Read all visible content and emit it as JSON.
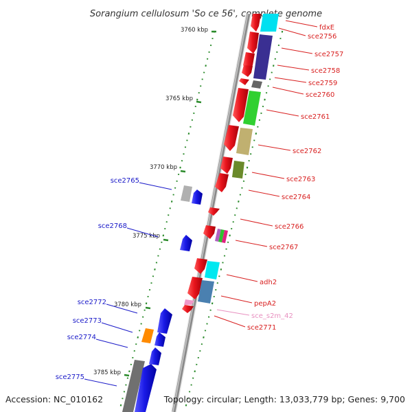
{
  "title": "Sorangium cellulosum 'So ce 56', complete genome",
  "footer": {
    "accession": "Accession: NC_010162",
    "topology": "Topology: circular; Length: 13,033,779 bp; Genes: 9,700"
  },
  "scale_labels": [
    "3760 kbp",
    "3765 kbp",
    "3770 kbp",
    "3775 kbp",
    "3780 kbp",
    "3785 kbp"
  ],
  "right_labels": [
    "fdxE",
    "sce2756",
    "sce2757",
    "sce2758",
    "sce2759",
    "sce2760",
    "sce2761",
    "sce2762",
    "sce2763",
    "sce2764",
    "sce2766",
    "sce2767",
    "adh2",
    "pepA2",
    "sce_s2m_42",
    "sce2771"
  ],
  "left_labels": [
    "sce2765",
    "sce2768",
    "sce2772",
    "sce2773",
    "sce2774",
    "sce2775"
  ],
  "colors": {
    "forward_gene": "#e8141c",
    "reverse_gene": "#1a1ae6",
    "label_right": "#d81e1e",
    "label_left": "#1818c8",
    "label_rna": "#e890c0",
    "backbone": "#8a8a8a",
    "ticks": "#2a8a2a"
  }
}
